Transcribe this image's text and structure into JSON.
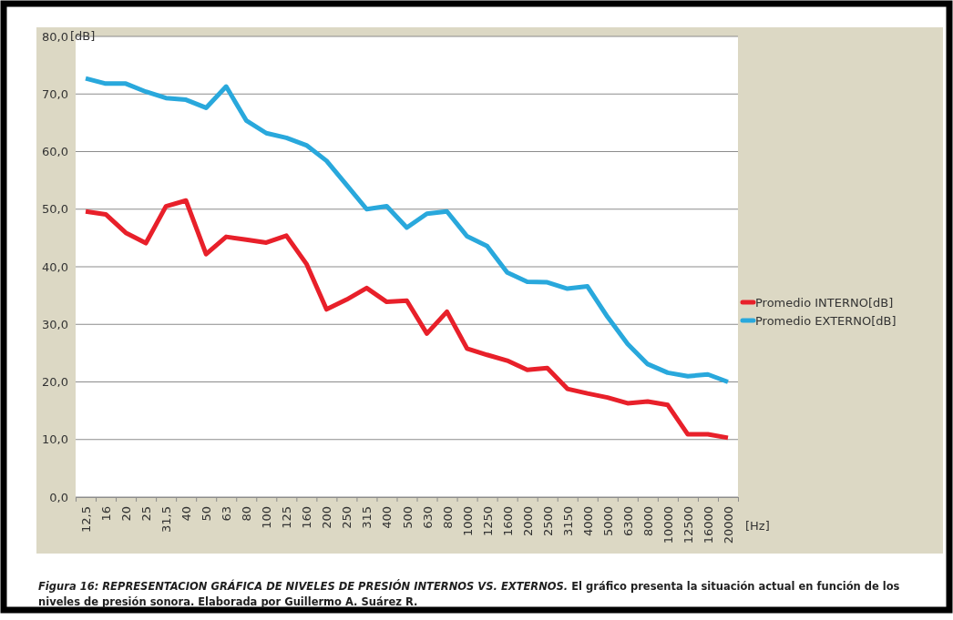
{
  "chart_data": {
    "type": "line",
    "categories": [
      "12,5",
      "16",
      "20",
      "25",
      "31,5",
      "40",
      "50",
      "63",
      "80",
      "100",
      "125",
      "160",
      "200",
      "250",
      "315",
      "400",
      "500",
      "630",
      "800",
      "1000",
      "1250",
      "1600",
      "2000",
      "2500",
      "3150",
      "4000",
      "5000",
      "6300",
      "8000",
      "10000",
      "12500",
      "16000",
      "20000"
    ],
    "series": [
      {
        "name": "Promedio INTERNO[dB]",
        "color": "#e8202a",
        "values": [
          49.6,
          49.1,
          45.9,
          44.1,
          50.5,
          51.5,
          42.2,
          45.2,
          44.7,
          44.2,
          45.4,
          40.5,
          32.6,
          34.3,
          36.3,
          33.9,
          34.1,
          28.4,
          32.2,
          25.8,
          24.7,
          23.7,
          22.1,
          22.4,
          18.8,
          18.0,
          17.3,
          16.3,
          16.6,
          16.0,
          10.9,
          10.9,
          10.3
        ]
      },
      {
        "name": "Promedio  EXTERNO[dB]",
        "color": "#29a8dc",
        "values": [
          72.7,
          71.8,
          71.8,
          70.4,
          69.3,
          69.0,
          67.6,
          71.3,
          65.4,
          63.2,
          62.4,
          61.1,
          58.4,
          54.2,
          50.0,
          50.5,
          46.8,
          49.2,
          49.6,
          45.3,
          43.6,
          39.0,
          37.4,
          37.3,
          36.2,
          36.6,
          31.3,
          26.6,
          23.1,
          21.6,
          21.0,
          21.3,
          20.0
        ]
      }
    ],
    "ylim": [
      0,
      80
    ],
    "yticks": [
      {
        "value": 0,
        "label": "0,0"
      },
      {
        "value": 10,
        "label": "10,0"
      },
      {
        "value": 20,
        "label": "20,0"
      },
      {
        "value": 30,
        "label": "30,0"
      },
      {
        "value": 40,
        "label": "40,0"
      },
      {
        "value": 50,
        "label": "50,0"
      },
      {
        "value": 60,
        "label": "60,0"
      },
      {
        "value": 70,
        "label": "70,0"
      },
      {
        "value": 80,
        "label": "80,0"
      }
    ],
    "ylabel": "[dB]",
    "xlabel": "[Hz]",
    "grid": "y",
    "legend": "right",
    "marker": "none",
    "line_style": "solid",
    "annotations": [
      "Figura 16: REPRESENTACION GRÁFICA DE NIVELES DE PRESIÓN INTERNOS VS. EXTERNOS.",
      "El gráfico presenta la situación actual en función de los niveles de presión sonora.  Elaborada por Guillermo A. Suárez R."
    ]
  }
}
